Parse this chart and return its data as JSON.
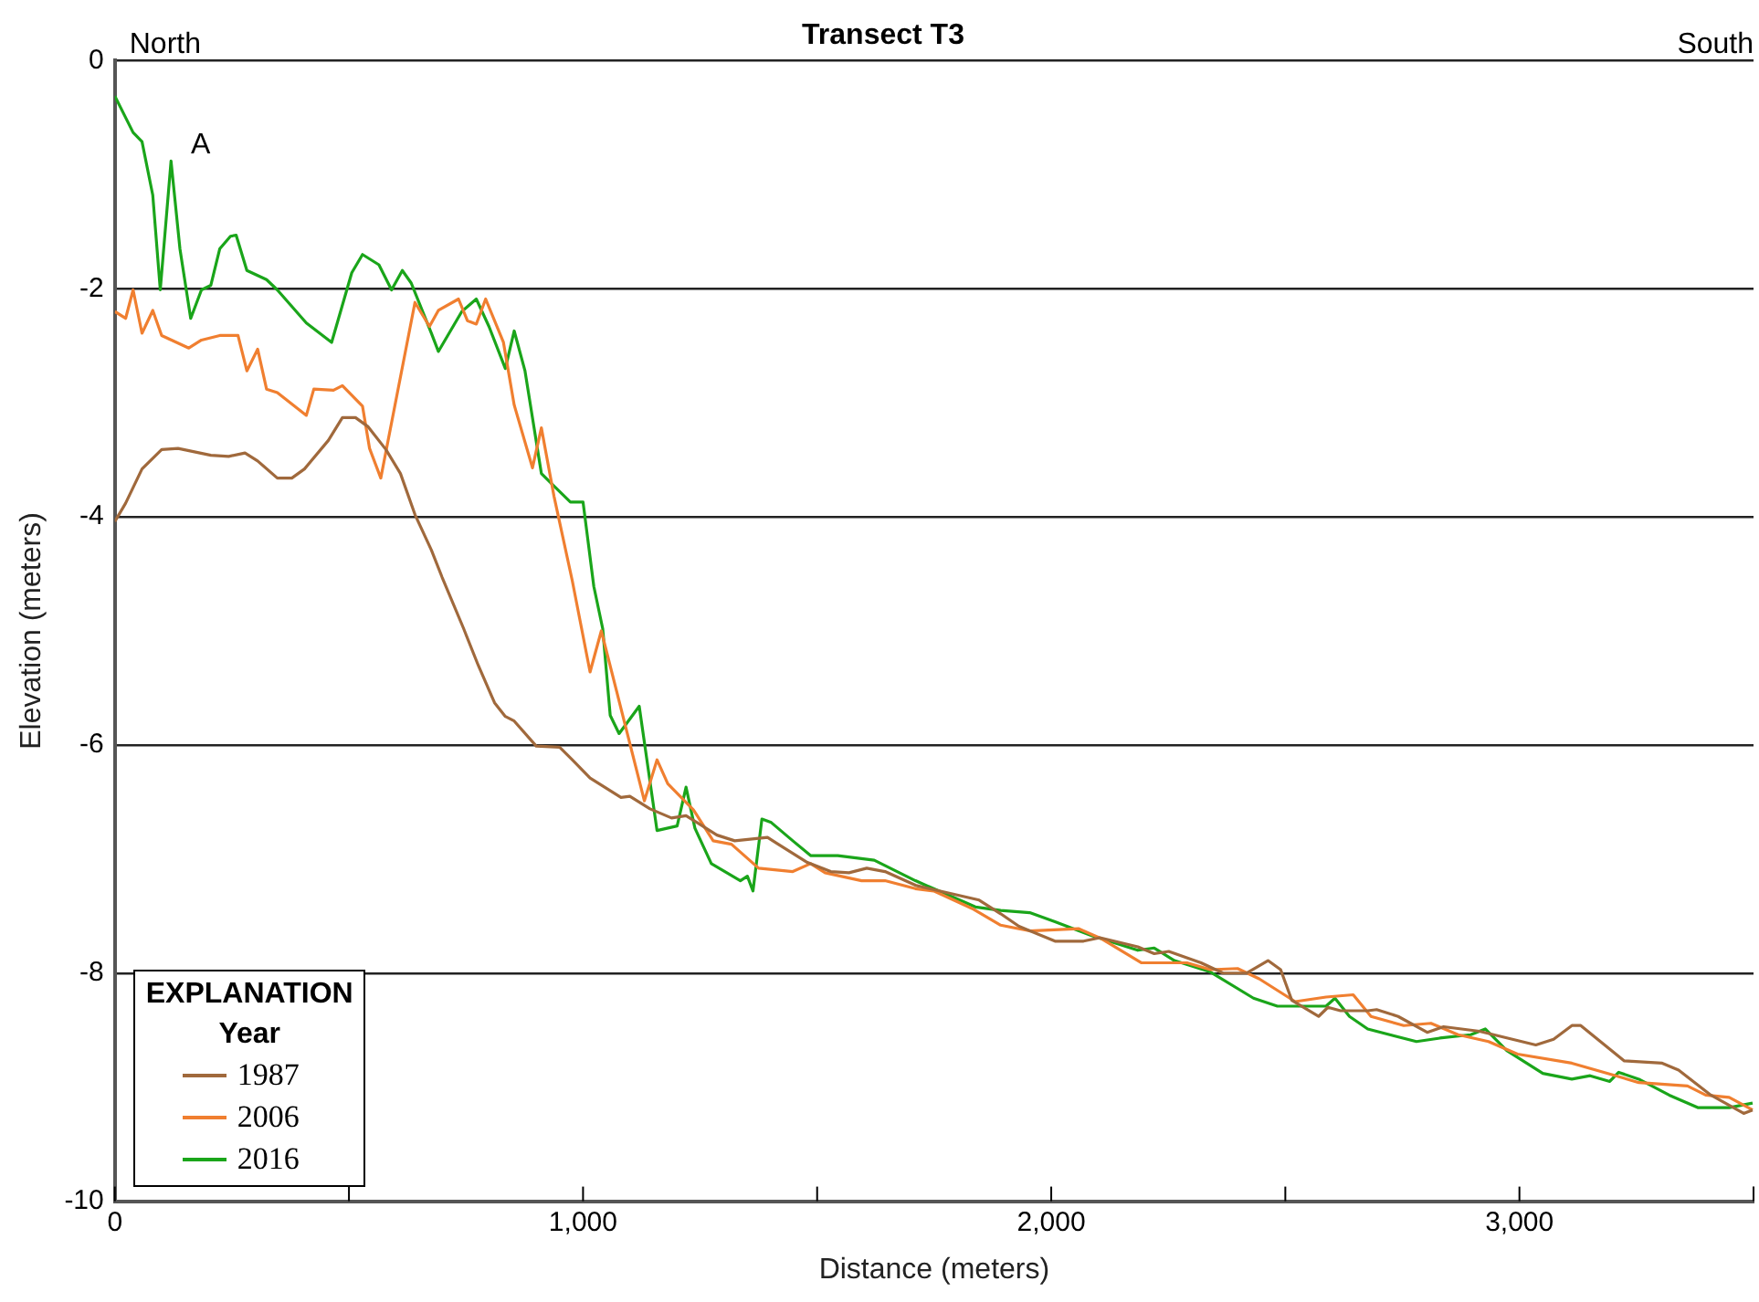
{
  "chart_data": {
    "type": "line",
    "title": "Transect T3",
    "xlabel": "Distance (meters)",
    "ylabel": "Elevation (meters)",
    "legend_title": "EXPLANATION\nYear",
    "legend": "bottom left",
    "grid": "y",
    "marker": "none",
    "line_style": "solid",
    "xlim": [
      0,
      3500
    ],
    "xticks": [
      {
        "value": 0,
        "label": "0"
      },
      {
        "value": 500,
        "label": null
      },
      {
        "value": 1000,
        "label": "1,000"
      },
      {
        "value": 1500,
        "label": null
      },
      {
        "value": 2000,
        "label": "2,000"
      },
      {
        "value": 2500,
        "label": null
      },
      {
        "value": 3000,
        "label": "3,000"
      },
      {
        "value": 3500,
        "label": null
      }
    ],
    "ylim": [
      -10,
      0
    ],
    "yticks": [
      -10,
      -8,
      -6,
      -4,
      -2,
      0
    ],
    "annotations": [
      "North",
      "South",
      "A"
    ],
    "series": [
      {
        "name": "1987",
        "color": "#a0693c",
        "x": [
          0,
          23,
          58,
          100,
          135,
          205,
          243,
          278,
          305,
          347,
          378,
          405,
          456,
          486,
          514,
          541,
          579,
          610,
          641,
          676,
          699,
          745,
          776,
          811,
          834,
          853,
          900,
          950,
          977,
          1015,
          1081,
          1100,
          1143,
          1189,
          1220,
          1286,
          1324,
          1394,
          1413,
          1479,
          1529,
          1568,
          1606,
          1645,
          1710,
          1761,
          1846,
          1892,
          1931,
          2008,
          2069,
          2104,
          2185,
          2220,
          2251,
          2320,
          2367,
          2417,
          2463,
          2490,
          2514,
          2571,
          2591,
          2618,
          2676,
          2695,
          2741,
          2803,
          2838,
          2915,
          2985,
          3035,
          3073,
          3112,
          3131,
          3224,
          3305,
          3340,
          3409,
          3479,
          3498
        ],
        "values": [
          -4.04,
          -3.88,
          -3.58,
          -3.41,
          -3.4,
          -3.46,
          -3.47,
          -3.44,
          -3.51,
          -3.66,
          -3.66,
          -3.58,
          -3.33,
          -3.13,
          -3.13,
          -3.21,
          -3.41,
          -3.62,
          -3.98,
          -4.29,
          -4.53,
          -4.98,
          -5.3,
          -5.63,
          -5.75,
          -5.79,
          -6.01,
          -6.02,
          -6.13,
          -6.29,
          -6.46,
          -6.45,
          -6.56,
          -6.64,
          -6.62,
          -6.79,
          -6.84,
          -6.81,
          -6.86,
          -7.03,
          -7.11,
          -7.12,
          -7.08,
          -7.11,
          -7.23,
          -7.28,
          -7.36,
          -7.48,
          -7.59,
          -7.72,
          -7.72,
          -7.69,
          -7.77,
          -7.83,
          -7.81,
          -7.91,
          -8.0,
          -8.0,
          -7.89,
          -7.97,
          -8.24,
          -8.38,
          -8.3,
          -8.33,
          -8.33,
          -8.32,
          -8.38,
          -8.52,
          -8.47,
          -8.51,
          -8.58,
          -8.63,
          -8.58,
          -8.46,
          -8.46,
          -8.77,
          -8.79,
          -8.85,
          -9.07,
          -9.23,
          -9.2
        ]
      },
      {
        "name": "2006",
        "color": "#f07f30",
        "x": [
          0,
          23,
          39,
          58,
          81,
          100,
          158,
          185,
          224,
          263,
          282,
          305,
          324,
          347,
          409,
          425,
          467,
          486,
          529,
          544,
          568,
          641,
          672,
          691,
          734,
          753,
          772,
          792,
          830,
          853,
          892,
          911,
          938,
          977,
          1015,
          1039,
          1073,
          1131,
          1158,
          1181,
          1236,
          1278,
          1317,
          1375,
          1448,
          1486,
          1517,
          1595,
          1645,
          1710,
          1749,
          1834,
          1892,
          1954,
          2058,
          2108,
          2193,
          2290,
          2340,
          2398,
          2444,
          2521,
          2587,
          2645,
          2683,
          2753,
          2811,
          2869,
          2934,
          2996,
          3112,
          3189,
          3255,
          3359,
          3398,
          3448,
          3498
        ],
        "values": [
          -2.2,
          -2.26,
          -2.01,
          -2.39,
          -2.19,
          -2.41,
          -2.52,
          -2.45,
          -2.41,
          -2.41,
          -2.72,
          -2.53,
          -2.88,
          -2.91,
          -3.11,
          -2.88,
          -2.89,
          -2.85,
          -3.03,
          -3.4,
          -3.66,
          -2.12,
          -2.33,
          -2.19,
          -2.09,
          -2.28,
          -2.31,
          -2.09,
          -2.47,
          -3.02,
          -3.57,
          -3.22,
          -3.82,
          -4.56,
          -5.36,
          -5.0,
          -5.55,
          -6.49,
          -6.13,
          -6.34,
          -6.57,
          -6.84,
          -6.87,
          -7.08,
          -7.11,
          -7.04,
          -7.12,
          -7.19,
          -7.19,
          -7.26,
          -7.28,
          -7.44,
          -7.58,
          -7.63,
          -7.61,
          -7.7,
          -7.91,
          -7.91,
          -7.97,
          -7.96,
          -8.05,
          -8.25,
          -8.21,
          -8.19,
          -8.38,
          -8.46,
          -8.44,
          -8.54,
          -8.6,
          -8.71,
          -8.79,
          -8.88,
          -8.96,
          -8.99,
          -9.07,
          -9.09,
          -9.2
        ]
      },
      {
        "name": "2016",
        "color": "#1aa51a",
        "x": [
          0,
          39,
          58,
          81,
          97,
          120,
          139,
          162,
          185,
          205,
          224,
          247,
          259,
          282,
          324,
          347,
          409,
          463,
          506,
          529,
          564,
          591,
          614,
          633,
          676,
          691,
          741,
          772,
          799,
          834,
          853,
          876,
          911,
          938,
          973,
          1000,
          1023,
          1042,
          1058,
          1077,
          1120,
          1158,
          1201,
          1220,
          1239,
          1274,
          1336,
          1351,
          1363,
          1382,
          1402,
          1448,
          1486,
          1544,
          1622,
          1710,
          1838,
          1892,
          1954,
          2008,
          2085,
          2185,
          2220,
          2263,
          2340,
          2432,
          2483,
          2587,
          2606,
          2637,
          2676,
          2780,
          2830,
          2896,
          2927,
          2973,
          3050,
          3112,
          3151,
          3193,
          3212,
          3255,
          3320,
          3382,
          3448,
          3498
        ],
        "values": [
          -0.31,
          -0.63,
          -0.71,
          -1.18,
          -2.01,
          -0.88,
          -1.65,
          -2.26,
          -2.01,
          -1.97,
          -1.65,
          -1.54,
          -1.53,
          -1.84,
          -1.92,
          -2.01,
          -2.3,
          -2.47,
          -1.86,
          -1.7,
          -1.79,
          -2.01,
          -1.84,
          -1.95,
          -2.39,
          -2.55,
          -2.2,
          -2.09,
          -2.33,
          -2.7,
          -2.37,
          -2.72,
          -3.62,
          -3.73,
          -3.87,
          -3.87,
          -4.61,
          -4.98,
          -5.74,
          -5.9,
          -5.66,
          -6.75,
          -6.71,
          -6.37,
          -6.73,
          -7.04,
          -7.19,
          -7.15,
          -7.28,
          -6.65,
          -6.68,
          -6.84,
          -6.97,
          -6.97,
          -7.01,
          -7.19,
          -7.42,
          -7.45,
          -7.47,
          -7.55,
          -7.67,
          -7.8,
          -7.78,
          -7.89,
          -7.99,
          -8.22,
          -8.29,
          -8.29,
          -8.22,
          -8.38,
          -8.49,
          -8.6,
          -8.57,
          -8.54,
          -8.49,
          -8.68,
          -8.88,
          -8.93,
          -8.9,
          -8.95,
          -8.87,
          -8.93,
          -9.07,
          -9.18,
          -9.18,
          -9.14
        ]
      }
    ]
  }
}
